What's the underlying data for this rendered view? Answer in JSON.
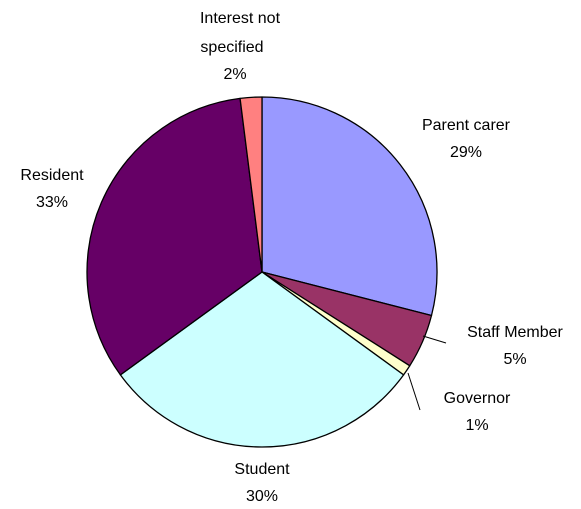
{
  "chart_data": {
    "type": "pie",
    "start_angle_deg": 0,
    "direction": "clockwise",
    "legend": "none",
    "slices": [
      {
        "label": "Parent carer",
        "pct_text": "29%",
        "value": 29,
        "color": "#9999ff"
      },
      {
        "label": "Staff Member",
        "pct_text": "5%",
        "value": 5,
        "color": "#993366"
      },
      {
        "label": "Governor",
        "pct_text": "1%",
        "value": 1,
        "color": "#ffffcc"
      },
      {
        "label": "Student",
        "pct_text": "30%",
        "value": 30,
        "color": "#ccffff"
      },
      {
        "label": "Resident",
        "pct_text": "33%",
        "value": 33,
        "color": "#660066"
      },
      {
        "label": "Interest not specified",
        "pct_text": "2%",
        "value": 2,
        "color": "#ff8080"
      }
    ]
  }
}
